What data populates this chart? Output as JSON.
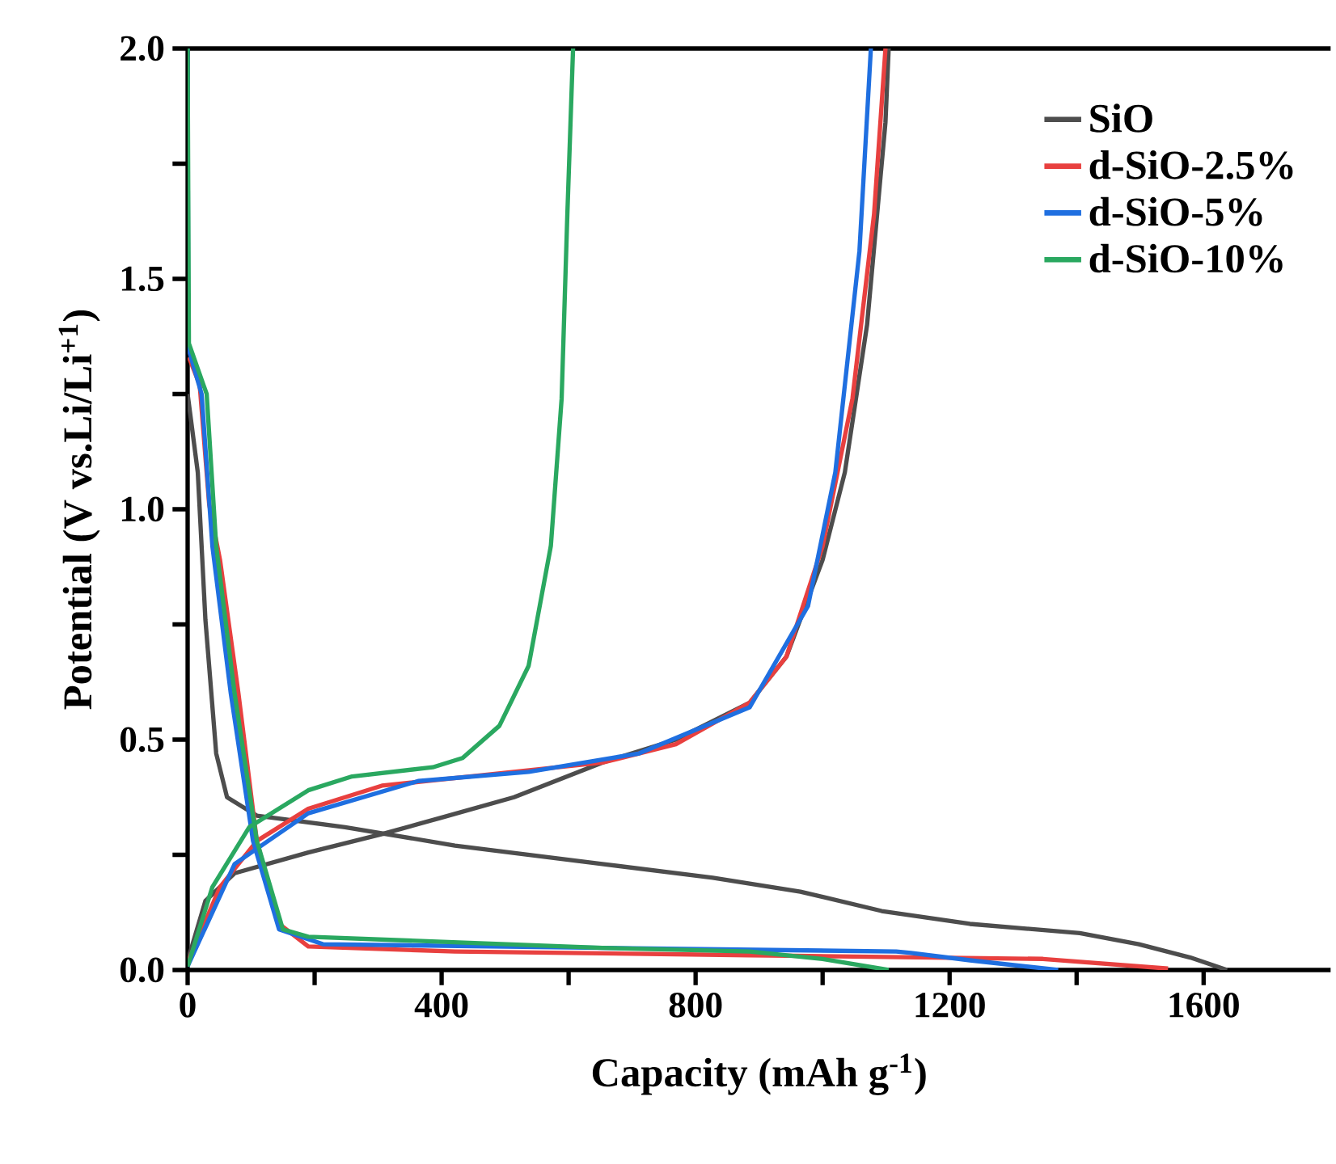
{
  "chart_data": {
    "type": "line",
    "xlabel": "Capacity (mAh g$^{-1}$)",
    "ylabel": "Potential  (V vs.Li/Li$^{+1}$)",
    "xlim": [
      0,
      1800
    ],
    "ylim": [
      0,
      2.0
    ],
    "xticks": [
      0,
      {
        "value": 200,
        "label": null
      },
      400,
      {
        "value": 600,
        "label": null
      },
      800,
      {
        "value": 1000,
        "label": null
      },
      1200,
      {
        "value": 1400,
        "label": null
      },
      1600
    ],
    "yticks": [
      {
        "value": 0,
        "label": "0.0"
      },
      {
        "value": 0.25,
        "label": null
      },
      {
        "value": 0.5,
        "label": "0.5"
      },
      {
        "value": 0.75,
        "label": null
      },
      {
        "value": 1.0,
        "label": "1.0"
      },
      {
        "value": 1.25,
        "label": null
      },
      {
        "value": 1.5,
        "label": "1.5"
      },
      {
        "value": 1.75,
        "label": null
      },
      {
        "value": 2.0,
        "label": "2.0"
      }
    ],
    "legend": "top right",
    "grid": false,
    "marker": "none",
    "line_style": "solid",
    "series": [
      {
        "name": "SiO",
        "color": "#4d4d4d",
        "x": [
          0,
          16,
          28,
          45,
          62,
          109,
          248,
          421,
          653,
          827,
          965,
          1093,
          1232,
          1405,
          1498,
          1579,
          1637,
          null,
          0,
          28,
          74,
          190,
          306,
          398,
          514,
          653,
          769,
          885,
          943,
          1000,
          1035,
          1070,
          1099,
          1104
        ],
        "values": [
          1.25,
          1.08,
          0.76,
          0.47,
          0.375,
          0.335,
          0.31,
          0.27,
          0.23,
          0.2,
          0.17,
          0.128,
          0.1,
          0.08,
          0.056,
          0.027,
          0,
          null,
          0.02,
          0.15,
          0.21,
          0.255,
          0.295,
          0.33,
          0.375,
          0.45,
          0.5,
          0.58,
          0.68,
          0.89,
          1.08,
          1.4,
          1.84,
          2.0
        ]
      },
      {
        "name": "d-SiO-2.5%",
        "color": "#e8403f",
        "x": [
          2,
          19,
          34,
          51,
          80,
          109,
          144,
          190,
          421,
          885,
          1347,
          1544,
          null,
          0,
          51,
          109,
          190,
          306,
          444,
          653,
          769,
          885,
          943,
          1000,
          1047,
          1081,
          1099
        ],
        "values": [
          1.33,
          1.27,
          1.01,
          0.89,
          0.6,
          0.28,
          0.1,
          0.051,
          0.04,
          0.032,
          0.024,
          0.003,
          null,
          0.016,
          0.18,
          0.28,
          0.35,
          0.4,
          0.42,
          0.45,
          0.49,
          0.58,
          0.68,
          0.92,
          1.24,
          1.64,
          2.0
        ]
      },
      {
        "name": "d-SiO-5%",
        "color": "#1f6fe0",
        "x": [
          0,
          1,
          22,
          39,
          68,
          103,
          144,
          213,
          653,
          1116,
          1139,
          1232,
          1371,
          null,
          0,
          74,
          190,
          363,
          537,
          711,
          885,
          977,
          1020,
          1058,
          1076
        ],
        "values": [
          2.0,
          1.35,
          1.25,
          0.92,
          0.6,
          0.28,
          0.088,
          0.056,
          0.048,
          0.04,
          0.037,
          0.021,
          0,
          null,
          0.008,
          0.23,
          0.34,
          0.41,
          0.43,
          0.47,
          0.57,
          0.79,
          1.08,
          1.56,
          2.0
        ]
      },
      {
        "name": "d-SiO-10%",
        "color": "#2aa860",
        "x": [
          0,
          2,
          30,
          45,
          74,
          109,
          150,
          190,
          653,
          885,
          1000,
          1104,
          null,
          0,
          39,
          97,
          190,
          259,
          386,
          433,
          491,
          537,
          572,
          589,
          598,
          607
        ],
        "values": [
          2.0,
          1.36,
          1.25,
          0.92,
          0.6,
          0.28,
          0.088,
          0.072,
          0.048,
          0.04,
          0.024,
          0,
          null,
          0.008,
          0.18,
          0.31,
          0.39,
          0.42,
          0.44,
          0.46,
          0.53,
          0.66,
          0.92,
          1.24,
          1.64,
          2.0
        ]
      }
    ]
  }
}
